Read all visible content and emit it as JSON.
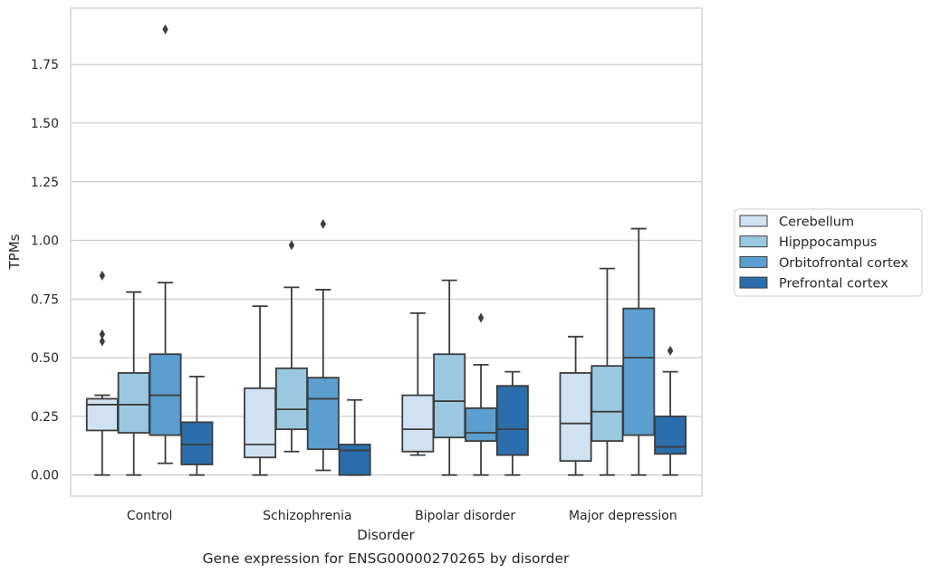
{
  "chart_data": {
    "type": "box",
    "caption": "Gene expression for ENSG00000270265 by disorder",
    "xlabel": "Disorder",
    "ylabel": "TPMs",
    "ylim": [
      -0.09,
      1.99
    ],
    "yticks": [
      0.0,
      0.25,
      0.5,
      0.75,
      1.0,
      1.25,
      1.5,
      1.75
    ],
    "ytick_labels": [
      "0.00",
      "0.25",
      "0.50",
      "0.75",
      "1.00",
      "1.25",
      "1.50",
      "1.75"
    ],
    "grid": "horizontal",
    "legend_position": "right",
    "categories": [
      "Control",
      "Schizophrenia",
      "Bipolar disorder",
      "Major depression"
    ],
    "series": [
      {
        "name": "Cerebellum",
        "color": "#d0e1f2",
        "boxes": [
          {
            "whislo": 0.0,
            "q1": 0.19,
            "med": 0.3,
            "q3": 0.325,
            "whishi": 0.34,
            "fliers": [
              0.57,
              0.6,
              0.85
            ]
          },
          {
            "whislo": 0.0,
            "q1": 0.075,
            "med": 0.13,
            "q3": 0.37,
            "whishi": 0.72,
            "fliers": []
          },
          {
            "whislo": 0.085,
            "q1": 0.1,
            "med": 0.195,
            "q3": 0.34,
            "whishi": 0.69,
            "fliers": []
          },
          {
            "whislo": 0.0,
            "q1": 0.06,
            "med": 0.22,
            "q3": 0.435,
            "whishi": 0.59,
            "fliers": []
          }
        ]
      },
      {
        "name": "Hipppocampus",
        "color": "#9ac8e0",
        "boxes": [
          {
            "whislo": 0.0,
            "q1": 0.18,
            "med": 0.3,
            "q3": 0.435,
            "whishi": 0.78,
            "fliers": []
          },
          {
            "whislo": 0.1,
            "q1": 0.195,
            "med": 0.28,
            "q3": 0.455,
            "whishi": 0.8,
            "fliers": [
              0.98
            ]
          },
          {
            "whislo": 0.0,
            "q1": 0.16,
            "med": 0.315,
            "q3": 0.515,
            "whishi": 0.83,
            "fliers": []
          },
          {
            "whislo": 0.0,
            "q1": 0.145,
            "med": 0.27,
            "q3": 0.465,
            "whishi": 0.88,
            "fliers": []
          }
        ]
      },
      {
        "name": "Orbitofrontal cortex",
        "color": "#5a9fcf",
        "boxes": [
          {
            "whislo": 0.05,
            "q1": 0.17,
            "med": 0.34,
            "q3": 0.515,
            "whishi": 0.82,
            "fliers": [
              1.9
            ]
          },
          {
            "whislo": 0.02,
            "q1": 0.11,
            "med": 0.325,
            "q3": 0.415,
            "whishi": 0.79,
            "fliers": [
              1.07
            ]
          },
          {
            "whislo": 0.0,
            "q1": 0.145,
            "med": 0.18,
            "q3": 0.285,
            "whishi": 0.47,
            "fliers": [
              0.67
            ]
          },
          {
            "whislo": 0.0,
            "q1": 0.17,
            "med": 0.5,
            "q3": 0.71,
            "whishi": 1.05,
            "fliers": []
          }
        ]
      },
      {
        "name": "Prefrontal cortex",
        "color": "#2b6ead",
        "boxes": [
          {
            "whislo": 0.0,
            "q1": 0.045,
            "med": 0.13,
            "q3": 0.225,
            "whishi": 0.42,
            "fliers": []
          },
          {
            "whislo": 0.0,
            "q1": 0.0,
            "med": 0.105,
            "q3": 0.13,
            "whishi": 0.32,
            "fliers": []
          },
          {
            "whislo": 0.0,
            "q1": 0.085,
            "med": 0.195,
            "q3": 0.38,
            "whishi": 0.44,
            "fliers": []
          },
          {
            "whislo": 0.0,
            "q1": 0.09,
            "med": 0.12,
            "q3": 0.25,
            "whishi": 0.44,
            "fliers": [
              0.53
            ]
          }
        ]
      }
    ]
  }
}
